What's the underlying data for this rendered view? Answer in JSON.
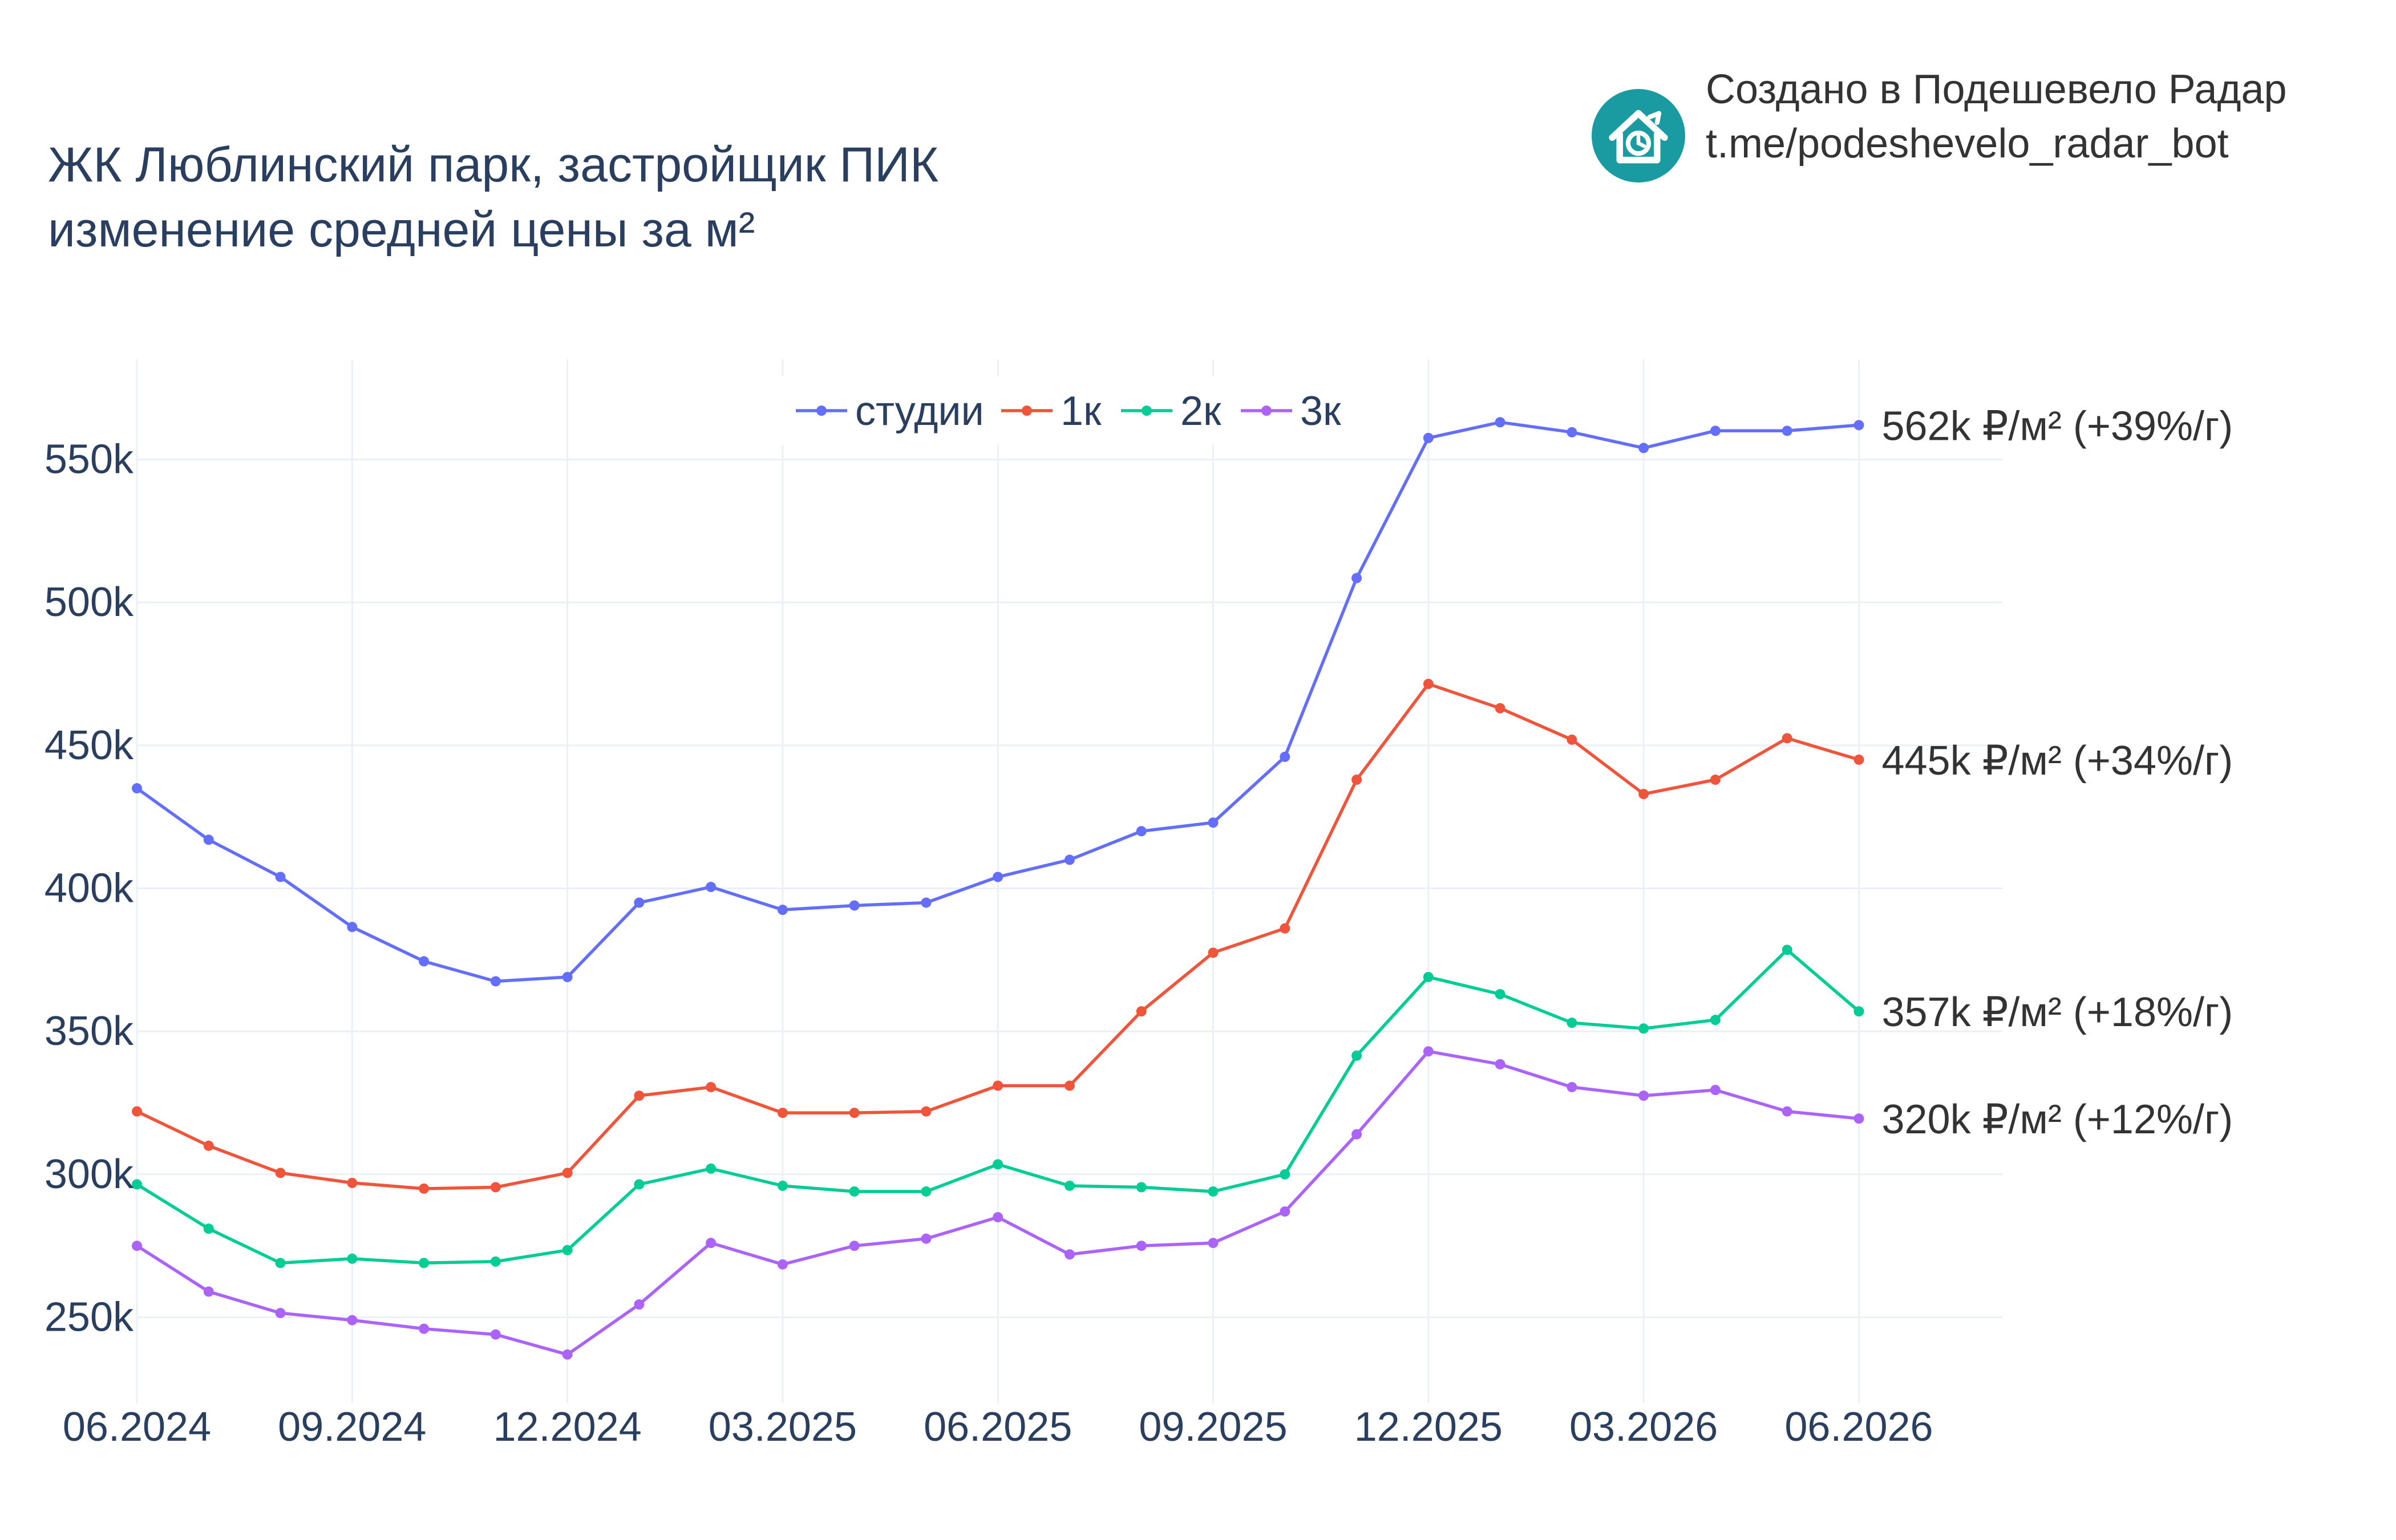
{
  "header": {
    "title_line1": "ЖК Люблинский парк, застройщик ПИК",
    "title_line2": "изменение средней цены за м²"
  },
  "credit": {
    "line1": "Создано в Подешевело Радар",
    "line2": "t.me/podeshevelo_radar_bot",
    "logo_icon": "house-clock-icon",
    "logo_color": "#1a9ba1"
  },
  "chart_data": {
    "type": "line",
    "title": "ЖК Люблинский парк, застройщик ПИК изменение средней цены за м²",
    "xlabel": "",
    "ylabel": "",
    "x": [
      "2024-06",
      "2024-07",
      "2024-08",
      "2024-09",
      "2024-10",
      "2024-11",
      "2024-12",
      "2025-01",
      "2025-02",
      "2025-03",
      "2025-04",
      "2025-05",
      "2025-06",
      "2025-07",
      "2025-08",
      "2025-09",
      "2025-10",
      "2025-11",
      "2025-12",
      "2026-01",
      "2026-02",
      "2026-03",
      "2026-04",
      "2026-05",
      "2026-06"
    ],
    "x_ticks": [
      {
        "x": "2024-06",
        "label": "06.2024"
      },
      {
        "x": "2024-09",
        "label": "09.2024"
      },
      {
        "x": "2024-12",
        "label": "12.2024"
      },
      {
        "x": "2025-03",
        "label": "03.2025"
      },
      {
        "x": "2025-06",
        "label": "06.2025"
      },
      {
        "x": "2025-09",
        "label": "09.2025"
      },
      {
        "x": "2025-12",
        "label": "12.2025"
      },
      {
        "x": "2026-03",
        "label": "03.2026"
      },
      {
        "x": "2026-06",
        "label": "06.2026"
      }
    ],
    "y_ticks": [
      {
        "value": 250000,
        "label": "250k"
      },
      {
        "value": 300000,
        "label": "300k"
      },
      {
        "value": 350000,
        "label": "350k"
      },
      {
        "value": 400000,
        "label": "400k"
      },
      {
        "value": 450000,
        "label": "450k"
      },
      {
        "value": 500000,
        "label": "500k"
      },
      {
        "value": 550000,
        "label": "550k"
      }
    ],
    "xlim": [
      "2024-06",
      "2026-08"
    ],
    "ylim": [
      220000,
      585000
    ],
    "grid": true,
    "legend_position": "top-center",
    "series": [
      {
        "name": "студии",
        "color": "#636efa",
        "end_label": "562k ₽/м² (+39%/г)",
        "values": [
          435000,
          417000,
          404000,
          386500,
          374500,
          367500,
          369000,
          395000,
          400500,
          392500,
          394000,
          395000,
          404000,
          410000,
          420000,
          423000,
          446000,
          508500,
          557500,
          563000,
          559500,
          554000,
          560000,
          560000,
          562000
        ]
      },
      {
        "name": "1к",
        "color": "#ef553b",
        "end_label": "445k ₽/м² (+34%/г)",
        "values": [
          322000,
          310000,
          300500,
          297000,
          295000,
          295500,
          300500,
          327500,
          330500,
          321500,
          321500,
          322000,
          331000,
          331000,
          357000,
          377500,
          386000,
          438000,
          471500,
          463000,
          452000,
          433000,
          438000,
          452500,
          445000
        ]
      },
      {
        "name": "2к",
        "color": "#00cc96",
        "end_label": "357k ₽/м² (+18%/г)",
        "values": [
          296500,
          281000,
          269000,
          270500,
          269000,
          269500,
          273500,
          296500,
          302000,
          296000,
          294000,
          294000,
          303500,
          296000,
          295500,
          294000,
          300000,
          341500,
          369000,
          363000,
          353000,
          351000,
          354000,
          378500,
          357000
        ]
      },
      {
        "name": "3к",
        "color": "#ab63fa",
        "end_label": "320k ₽/м² (+12%/г)",
        "values": [
          275000,
          259000,
          251500,
          249000,
          246000,
          244000,
          237000,
          254500,
          276000,
          268500,
          275000,
          277500,
          285000,
          272000,
          275000,
          276000,
          287000,
          314000,
          343000,
          338500,
          330500,
          327500,
          329500,
          322000,
          319500
        ]
      }
    ]
  }
}
